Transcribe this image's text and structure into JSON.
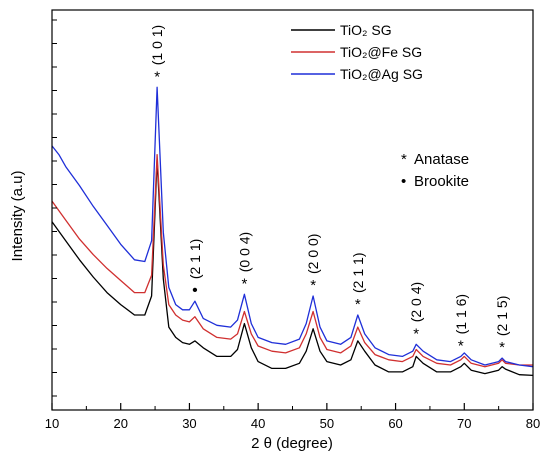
{
  "chart_data": {
    "type": "line",
    "xlabel": "2 θ (degree)",
    "ylabel": "Intensity (a.u)",
    "xlim": [
      10,
      80
    ],
    "xticks": [
      10,
      20,
      30,
      40,
      50,
      60,
      70,
      80
    ],
    "y_tick_labels_shown": false,
    "grid": false,
    "legend_position": "top-right",
    "series": [
      {
        "name": "TiO₂ SG",
        "color": "#000000",
        "points": [
          [
            10,
            0.415
          ],
          [
            12,
            0.36
          ],
          [
            14,
            0.305
          ],
          [
            16,
            0.255
          ],
          [
            18,
            0.21
          ],
          [
            20,
            0.175
          ],
          [
            22,
            0.145
          ],
          [
            23.5,
            0.145
          ],
          [
            24.5,
            0.2
          ],
          [
            25.3,
            0.595
          ],
          [
            26.2,
            0.25
          ],
          [
            27,
            0.11
          ],
          [
            28,
            0.08
          ],
          [
            29,
            0.065
          ],
          [
            30,
            0.06
          ],
          [
            30.8,
            0.07
          ],
          [
            32,
            0.05
          ],
          [
            34,
            0.025
          ],
          [
            36,
            0.025
          ],
          [
            37,
            0.045
          ],
          [
            38,
            0.12
          ],
          [
            39,
            0.05
          ],
          [
            40,
            0.01
          ],
          [
            42,
            -0.01
          ],
          [
            44,
            -0.01
          ],
          [
            46,
            0.005
          ],
          [
            47,
            0.04
          ],
          [
            48,
            0.105
          ],
          [
            49,
            0.04
          ],
          [
            50,
            0.01
          ],
          [
            52,
            0.0
          ],
          [
            53.5,
            0.015
          ],
          [
            54.5,
            0.07
          ],
          [
            55.5,
            0.04
          ],
          [
            57,
            0.0
          ],
          [
            59,
            -0.02
          ],
          [
            61,
            -0.02
          ],
          [
            62.5,
            -0.005
          ],
          [
            63,
            0.025
          ],
          [
            64,
            0.005
          ],
          [
            66,
            -0.02
          ],
          [
            68,
            -0.02
          ],
          [
            69.5,
            -0.005
          ],
          [
            70,
            0.005
          ],
          [
            71,
            -0.015
          ],
          [
            73,
            -0.025
          ],
          [
            75,
            -0.015
          ],
          [
            75.5,
            -0.005
          ],
          [
            76,
            -0.012
          ],
          [
            78,
            -0.028
          ],
          [
            80,
            -0.03
          ]
        ]
      },
      {
        "name": "TiO₂@Fe SG",
        "color": "#d03030",
        "points": [
          [
            10,
            0.475
          ],
          [
            12,
            0.42
          ],
          [
            14,
            0.365
          ],
          [
            16,
            0.32
          ],
          [
            18,
            0.28
          ],
          [
            20,
            0.245
          ],
          [
            22,
            0.21
          ],
          [
            23.5,
            0.21
          ],
          [
            24.5,
            0.26
          ],
          [
            25.3,
            0.61
          ],
          [
            26.2,
            0.29
          ],
          [
            27,
            0.175
          ],
          [
            28,
            0.145
          ],
          [
            29,
            0.13
          ],
          [
            30,
            0.125
          ],
          [
            30.8,
            0.14
          ],
          [
            32,
            0.105
          ],
          [
            34,
            0.08
          ],
          [
            36,
            0.075
          ],
          [
            37,
            0.09
          ],
          [
            38,
            0.155
          ],
          [
            39,
            0.09
          ],
          [
            40,
            0.055
          ],
          [
            42,
            0.04
          ],
          [
            44,
            0.035
          ],
          [
            46,
            0.05
          ],
          [
            47,
            0.09
          ],
          [
            48,
            0.155
          ],
          [
            49,
            0.08
          ],
          [
            50,
            0.045
          ],
          [
            52,
            0.035
          ],
          [
            53.5,
            0.055
          ],
          [
            54.5,
            0.11
          ],
          [
            55.5,
            0.065
          ],
          [
            57,
            0.03
          ],
          [
            59,
            0.015
          ],
          [
            61,
            0.01
          ],
          [
            62.5,
            0.025
          ],
          [
            63,
            0.045
          ],
          [
            64,
            0.025
          ],
          [
            66,
            0.005
          ],
          [
            68,
            0.0
          ],
          [
            69.5,
            0.015
          ],
          [
            70,
            0.025
          ],
          [
            71,
            0.005
          ],
          [
            73,
            -0.005
          ],
          [
            75,
            0.005
          ],
          [
            75.5,
            0.015
          ],
          [
            76,
            0.005
          ],
          [
            78,
            0.0
          ],
          [
            80,
            0.0
          ]
        ]
      },
      {
        "name": "TiO₂@Ag SG",
        "color": "#1f2fd8",
        "points": [
          [
            10,
            0.635
          ],
          [
            11,
            0.61
          ],
          [
            12,
            0.575
          ],
          [
            14,
            0.52
          ],
          [
            16,
            0.46
          ],
          [
            18,
            0.405
          ],
          [
            20,
            0.35
          ],
          [
            22,
            0.305
          ],
          [
            23.5,
            0.3
          ],
          [
            24.5,
            0.36
          ],
          [
            25.3,
            0.805
          ],
          [
            26.2,
            0.385
          ],
          [
            27,
            0.225
          ],
          [
            28,
            0.175
          ],
          [
            29,
            0.16
          ],
          [
            30,
            0.16
          ],
          [
            30.8,
            0.185
          ],
          [
            32,
            0.135
          ],
          [
            34,
            0.115
          ],
          [
            36,
            0.11
          ],
          [
            37,
            0.13
          ],
          [
            38,
            0.205
          ],
          [
            39,
            0.12
          ],
          [
            40,
            0.08
          ],
          [
            42,
            0.065
          ],
          [
            44,
            0.06
          ],
          [
            46,
            0.075
          ],
          [
            47,
            0.12
          ],
          [
            48,
            0.2
          ],
          [
            49,
            0.11
          ],
          [
            50,
            0.07
          ],
          [
            52,
            0.06
          ],
          [
            53.5,
            0.08
          ],
          [
            54.5,
            0.145
          ],
          [
            55.5,
            0.09
          ],
          [
            57,
            0.05
          ],
          [
            59,
            0.03
          ],
          [
            61,
            0.025
          ],
          [
            62.5,
            0.04
          ],
          [
            63,
            0.06
          ],
          [
            64,
            0.04
          ],
          [
            66,
            0.015
          ],
          [
            68,
            0.01
          ],
          [
            69.5,
            0.025
          ],
          [
            70,
            0.035
          ],
          [
            71,
            0.015
          ],
          [
            73,
            0.0
          ],
          [
            75,
            0.01
          ],
          [
            75.5,
            0.02
          ],
          [
            76,
            0.01
          ],
          [
            78,
            0.0
          ],
          [
            80,
            -0.005
          ]
        ]
      }
    ],
    "annotations": [
      {
        "text": "(1 0 1)",
        "x": 25.3,
        "rotated": true
      },
      {
        "text": "(2 1 1)",
        "x": 30.8,
        "rotated": true
      },
      {
        "text": "(0 0 4)",
        "x": 38.0,
        "rotated": true
      },
      {
        "text": "(2 0 0)",
        "x": 48.0,
        "rotated": true
      },
      {
        "text": "(2 1 1)",
        "x": 54.5,
        "rotated": true
      },
      {
        "text": "(2 0 4)",
        "x": 63.0,
        "rotated": true
      },
      {
        "text": "(1 1 6)",
        "x": 69.5,
        "rotated": true
      },
      {
        "text": "(2 1 5)",
        "x": 75.5,
        "rotated": true
      }
    ],
    "markers": [
      {
        "symbol": "*",
        "kind": "anatase",
        "x": 25.3
      },
      {
        "symbol": "•",
        "kind": "brookite",
        "x": 30.8
      },
      {
        "symbol": "*",
        "kind": "anatase",
        "x": 38.0
      },
      {
        "symbol": "*",
        "kind": "anatase",
        "x": 48.0
      },
      {
        "symbol": "*",
        "kind": "anatase",
        "x": 54.5
      },
      {
        "symbol": "*",
        "kind": "anatase",
        "x": 63.0
      },
      {
        "symbol": "*",
        "kind": "anatase",
        "x": 69.5
      },
      {
        "symbol": "*",
        "kind": "anatase",
        "x": 75.5
      }
    ],
    "phase_key": [
      {
        "symbol": "*",
        "label": "Anatase"
      },
      {
        "symbol": "•",
        "label": "Brookite"
      }
    ]
  }
}
